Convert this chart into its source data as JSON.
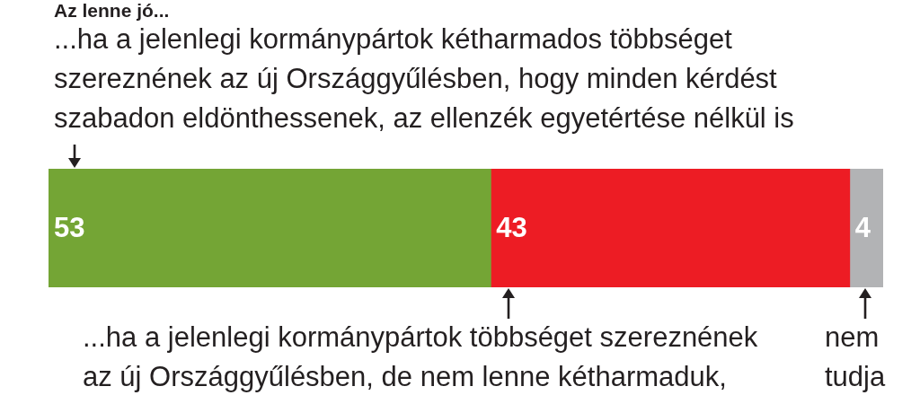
{
  "chart_data": {
    "type": "bar",
    "orientation": "horizontal",
    "stacked": true,
    "title": "Az lenne jó...",
    "categories": [
      null
    ],
    "series": [
      {
        "name": "...ha a jelenlegi kormánypártok kétharmados többséget szereznének az új Országgyűlésben, hogy minden kérdést szabadon eldönthessenek, az ellenzék egyetértése nélkül is",
        "color": "#74a535",
        "values": [
          53
        ]
      },
      {
        "name": "...ha a jelenlegi kormánypártok többséget szereznének az új Országgyűlésben, de nem lenne kétharmaduk,",
        "color": "#ed1c24",
        "values": [
          43
        ]
      },
      {
        "name": "nem tudja",
        "color": "#b2b3b5",
        "values": [
          4
        ]
      }
    ],
    "data_labels": true,
    "tick_labels": false
  }
}
